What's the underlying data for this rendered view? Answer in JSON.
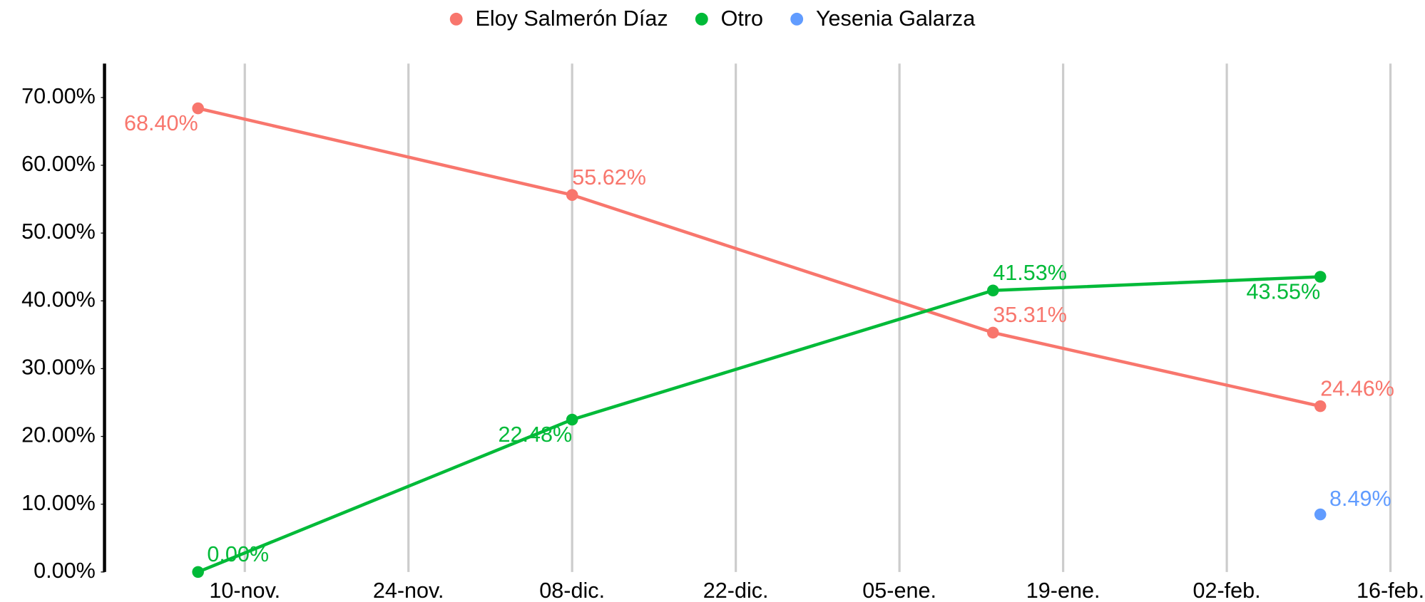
{
  "chart_data": {
    "type": "line",
    "x": [
      "11-06",
      "12-08",
      "01-13",
      "02-10"
    ],
    "series": [
      {
        "name": "Eloy Salmerón Díaz",
        "color": "#f8766d",
        "values": [
          68.4,
          55.62,
          35.31,
          24.46
        ],
        "value_labels": [
          "68.40%",
          "55.62%",
          "35.31%",
          "24.46%"
        ]
      },
      {
        "name": "Otro",
        "color": "#00ba38",
        "values": [
          0.0,
          22.48,
          41.53,
          43.55
        ],
        "value_labels": [
          "0.00%",
          "22.48%",
          "41.53%",
          "43.55%"
        ]
      },
      {
        "name": "Yesenia Galarza",
        "color": "#619cff",
        "values": [
          null,
          null,
          null,
          8.49
        ],
        "value_labels": [
          null,
          null,
          null,
          "8.49%"
        ]
      }
    ],
    "xlim": [
      "10-29",
      "02-16"
    ],
    "xticks": [
      {
        "value": "11-10",
        "label": "10-nov."
      },
      {
        "value": "11-24",
        "label": "24-nov."
      },
      {
        "value": "12-08",
        "label": "08-dic."
      },
      {
        "value": "12-22",
        "label": "22-dic."
      },
      {
        "value": "01-05",
        "label": "05-ene."
      },
      {
        "value": "01-19",
        "label": "19-ene."
      },
      {
        "value": "02-02",
        "label": "02-feb."
      },
      {
        "value": "02-16",
        "label": "16-feb."
      }
    ],
    "ylim": [
      0,
      75
    ],
    "yticks": [
      {
        "value": 0,
        "label": "0.00%"
      },
      {
        "value": 10,
        "label": "10.00%"
      },
      {
        "value": 20,
        "label": "20.00%"
      },
      {
        "value": 30,
        "label": "30.00%"
      },
      {
        "value": 40,
        "label": "40.00%"
      },
      {
        "value": 50,
        "label": "50.00%"
      },
      {
        "value": 60,
        "label": "60.00%"
      },
      {
        "value": 70,
        "label": "70.00%"
      }
    ],
    "grid": true,
    "legend": "top"
  }
}
